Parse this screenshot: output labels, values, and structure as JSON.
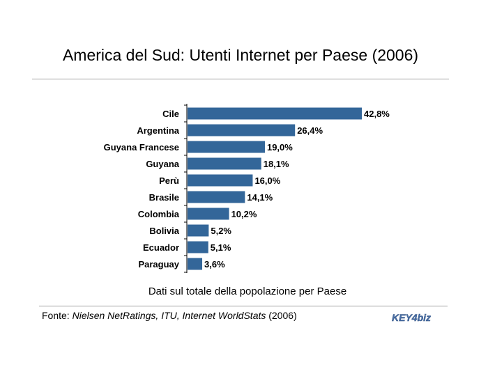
{
  "header": {
    "title": "America del Sud: Utenti Internet per Paese (2006)"
  },
  "chart_data": {
    "type": "bar",
    "orientation": "horizontal",
    "categories": [
      "Cile",
      "Argentina",
      "Guyana Francese",
      "Guyana",
      "Perù",
      "Brasile",
      "Colombia",
      "Bolivia",
      "Ecuador",
      "Paraguay"
    ],
    "values": [
      42.8,
      26.4,
      19.0,
      18.1,
      16.0,
      14.1,
      10.2,
      5.2,
      5.1,
      3.6
    ],
    "data_labels": [
      "42,8%",
      "26,4%",
      "19,0%",
      "18,1%",
      "16,0%",
      "14,1%",
      "10,2%",
      "5,2%",
      "5,1%",
      "3,6%"
    ],
    "bar_color": "#336699",
    "xlim": [
      0,
      45
    ],
    "grid": false,
    "legend": "none"
  },
  "footer": {
    "subtitle": "Dati sul totale della popolazione per Paese",
    "source_prefix": "Fonte: ",
    "source_italic": "Nielsen NetRatings, ITU, Internet WorldStats",
    "source_suffix": " (2006)",
    "logo_text": "KEY4biz",
    "logo_color": "#4a6fa5"
  }
}
